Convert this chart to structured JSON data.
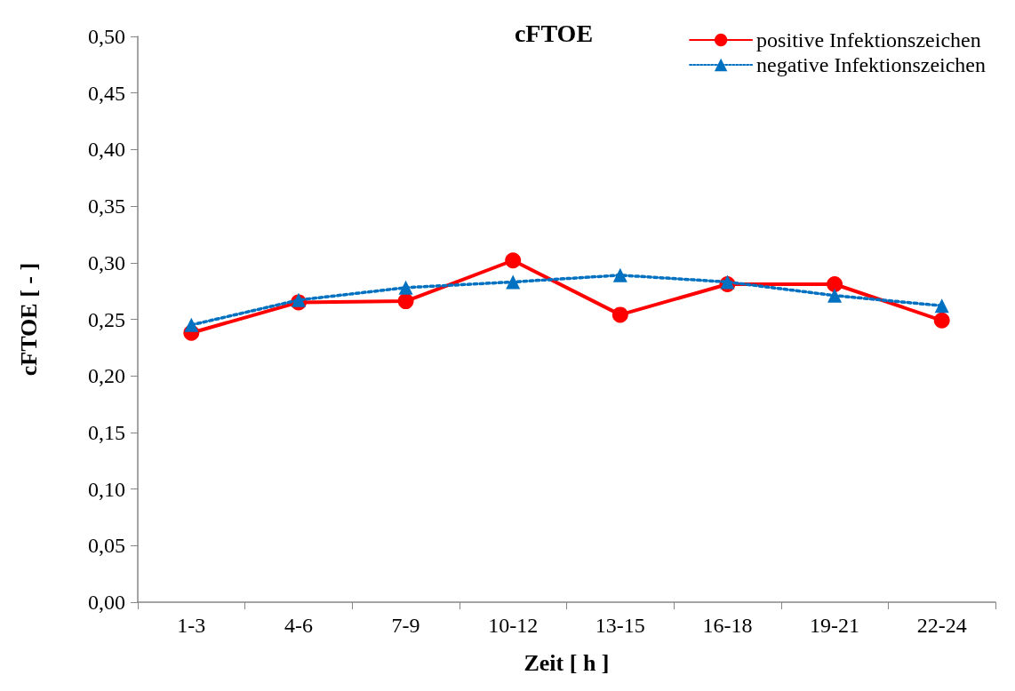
{
  "chart_data": {
    "type": "line",
    "title": "cFTOE",
    "xlabel": "Zeit [ h ]",
    "ylabel": "cFTOE [ - ]",
    "categories": [
      "1-3",
      "4-6",
      "7-9",
      "10-12",
      "13-15",
      "16-18",
      "19-21",
      "22-24"
    ],
    "ylim": [
      0,
      0.5
    ],
    "yticks": [
      {
        "value": 0,
        "label": "0,00"
      },
      {
        "value": 0.05,
        "label": "0,05"
      },
      {
        "value": 0.1,
        "label": "0,10"
      },
      {
        "value": 0.15,
        "label": "0,15"
      },
      {
        "value": 0.2,
        "label": "0,20"
      },
      {
        "value": 0.25,
        "label": "0,25"
      },
      {
        "value": 0.3,
        "label": "0,30"
      },
      {
        "value": 0.35,
        "label": "0,35"
      },
      {
        "value": 0.4,
        "label": "0,40"
      },
      {
        "value": 0.45,
        "label": "0,45"
      },
      {
        "value": 0.5,
        "label": "0,50"
      }
    ],
    "grid": false,
    "legend": "top right",
    "series": [
      {
        "name": "positive Infektionszeichen",
        "color": "#ff0000",
        "marker": "circle",
        "line_style": "solid",
        "values": [
          0.238,
          0.265,
          0.266,
          0.302,
          0.254,
          0.281,
          0.281,
          0.249
        ]
      },
      {
        "name": "negative Infektionszeichen",
        "color": "#0070c0",
        "marker": "triangle",
        "line_style": "dotted",
        "values": [
          0.245,
          0.267,
          0.278,
          0.283,
          0.289,
          0.283,
          0.271,
          0.262
        ]
      }
    ]
  }
}
